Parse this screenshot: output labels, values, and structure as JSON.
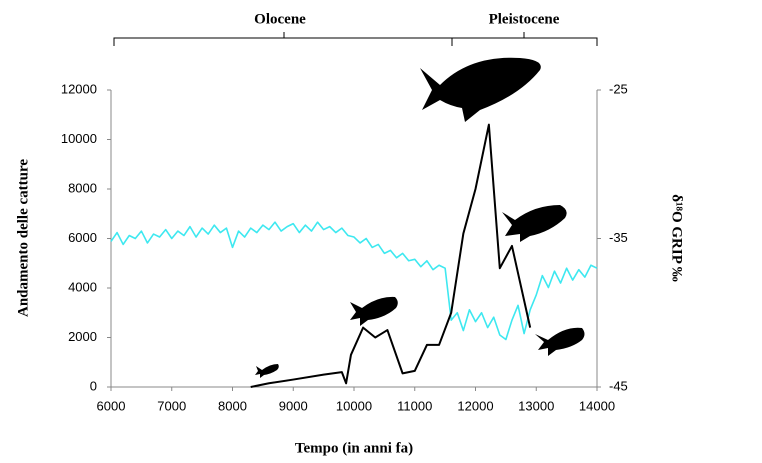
{
  "chart_data": {
    "type": "line",
    "xlabel": "Tempo (in anni fa)",
    "ylabel": "Andamento delle catture",
    "y2label": "δ¹⁸O GRIP ‰",
    "annotations": [
      "Olocene",
      "Pleistocene"
    ],
    "xlim": [
      6000,
      14000
    ],
    "xticks": [
      6000,
      7000,
      8000,
      9000,
      10000,
      11000,
      12000,
      13000,
      14000
    ],
    "ylim": [
      0,
      12000
    ],
    "yticks": [
      0,
      2000,
      4000,
      6000,
      8000,
      10000,
      12000
    ],
    "y2lim": [
      -45,
      -25
    ],
    "y2ticks": [
      -45,
      -35,
      -25
    ],
    "series": [
      {
        "color": "#3ee8f0",
        "axis": "y2",
        "x": [
          6000,
          6100,
          6200,
          6300,
          6400,
          6500,
          6600,
          6700,
          6800,
          6900,
          7000,
          7100,
          7200,
          7300,
          7400,
          7500,
          7600,
          7700,
          7800,
          7900,
          8000,
          8100,
          8200,
          8300,
          8400,
          8500,
          8600,
          8700,
          8800,
          8900,
          9000,
          9100,
          9200,
          9300,
          9400,
          9500,
          9600,
          9700,
          9800,
          9900,
          10000,
          10100,
          10200,
          10300,
          10400,
          10500,
          10600,
          10700,
          10800,
          10900,
          11000,
          11100,
          11200,
          11300,
          11400,
          11500,
          11600,
          11700,
          11800,
          11900,
          12000,
          12100,
          12200,
          12300,
          12400,
          12500,
          12600,
          12700,
          12800,
          12900,
          13000,
          13100,
          13200,
          13300,
          13400,
          13500,
          13600,
          13700,
          13800,
          13900,
          14000
        ],
        "values": [
          -35.2,
          -34.6,
          -35.4,
          -34.8,
          -35.0,
          -34.5,
          -35.3,
          -34.7,
          -34.9,
          -34.4,
          -35.0,
          -34.5,
          -34.8,
          -34.2,
          -34.9,
          -34.3,
          -34.7,
          -34.1,
          -34.6,
          -34.3,
          -35.6,
          -34.5,
          -34.9,
          -34.3,
          -34.6,
          -34.1,
          -34.4,
          -33.9,
          -34.5,
          -34.2,
          -34.0,
          -34.6,
          -34.1,
          -34.5,
          -33.9,
          -34.4,
          -34.2,
          -34.6,
          -34.3,
          -34.8,
          -34.9,
          -35.3,
          -35.0,
          -35.6,
          -35.4,
          -36.0,
          -35.8,
          -36.3,
          -36.0,
          -36.5,
          -36.4,
          -36.9,
          -36.5,
          -37.1,
          -36.8,
          -37.0,
          -40.5,
          -40.0,
          -41.2,
          -39.8,
          -40.6,
          -40.0,
          -41.0,
          -40.3,
          -41.5,
          -41.8,
          -40.5,
          -39.5,
          -41.4,
          -39.8,
          -38.8,
          -37.5,
          -38.3,
          -37.2,
          -38.0,
          -37.0,
          -37.8,
          -37.1,
          -37.6,
          -36.8,
          -37.0
        ]
      },
      {
        "color": "#000000",
        "axis": "y",
        "x": [
          8300,
          8600,
          9000,
          9500,
          9800,
          9870,
          9950,
          10150,
          10350,
          10550,
          10800,
          11000,
          11200,
          11400,
          11600,
          11800,
          12000,
          12220,
          12400,
          12600,
          12800,
          12900
        ],
        "values": [
          0,
          150,
          300,
          500,
          600,
          150,
          1300,
          2400,
          2000,
          2300,
          550,
          650,
          1700,
          1700,
          3000,
          6200,
          8000,
          10600,
          4800,
          5700,
          3500,
          2400
        ]
      }
    ]
  }
}
